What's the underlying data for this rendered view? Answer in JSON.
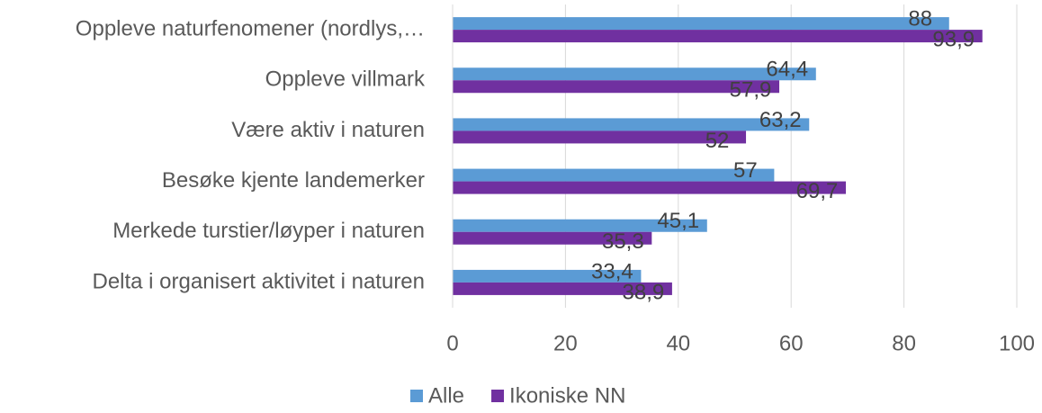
{
  "chart_data": {
    "type": "hbar",
    "categories": [
      "Oppleve naturfenomener (nordlys,…",
      "Oppleve villmark",
      "Være aktiv i naturen",
      "Besøke kjente landemerker",
      "Merkede turstier/løyper i naturen",
      "Delta i organisert aktivitet i naturen"
    ],
    "series": [
      {
        "name": "Alle",
        "color": "#5b9bd5",
        "values": [
          88,
          64.4,
          63.2,
          57,
          45.1,
          33.4
        ],
        "value_labels": [
          "88",
          "64,4",
          "63,2",
          "57",
          "45,1",
          "33,4"
        ]
      },
      {
        "name": "Ikoniske NN",
        "color": "#7030a0",
        "values": [
          93.9,
          57.9,
          52,
          69.7,
          35.3,
          38.9
        ],
        "value_labels": [
          "93,9",
          "57,9",
          "52",
          "69,7",
          "35,3",
          "38,9"
        ]
      }
    ],
    "xlim": [
      0,
      100
    ],
    "xticks": [
      0,
      20,
      40,
      60,
      80,
      100
    ],
    "grid": true,
    "legend": "bottom"
  }
}
